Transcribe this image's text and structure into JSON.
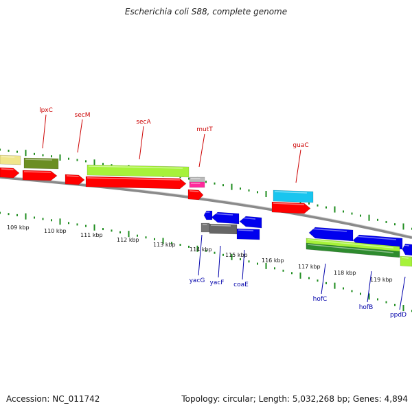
{
  "title": "Escherichia coli S88, complete genome",
  "footer": {
    "accession": "Accession: NC_011742",
    "summary": "Topology: circular; Length: 5,032,268 bp; Genes: 4,894"
  },
  "colors": {
    "forward_label": "#cc0000",
    "reverse_label": "#0000aa",
    "backbone": "#8a8a8a",
    "tick": "#1e8c1e",
    "cds_red": "#ff0000",
    "cds_blue": "#0000ee",
    "gene_lime": "#a6f23a",
    "gene_olive": "#6b8e23",
    "gene_khaki": "#f0e68c",
    "gene_cyan": "#19c5ef",
    "gene_gray": "#888888",
    "gene_pink": "#ff2a9c",
    "gene_green": "#2e8b2e"
  },
  "kbp_labels": [
    "109 kbp",
    "110 kbp",
    "111 kbp",
    "112 kbp",
    "113 kbp",
    "114 kbp",
    "115 kbp",
    "116 kbp",
    "117 kbp",
    "118 kbp",
    "119 kbp"
  ],
  "forward_gene_labels": [
    "lpxC",
    "secM",
    "secA",
    "mutT",
    "guaC"
  ],
  "reverse_gene_labels": [
    "yacG",
    "yacF",
    "coaE",
    "hofC",
    "hofB",
    "ppdD"
  ]
}
